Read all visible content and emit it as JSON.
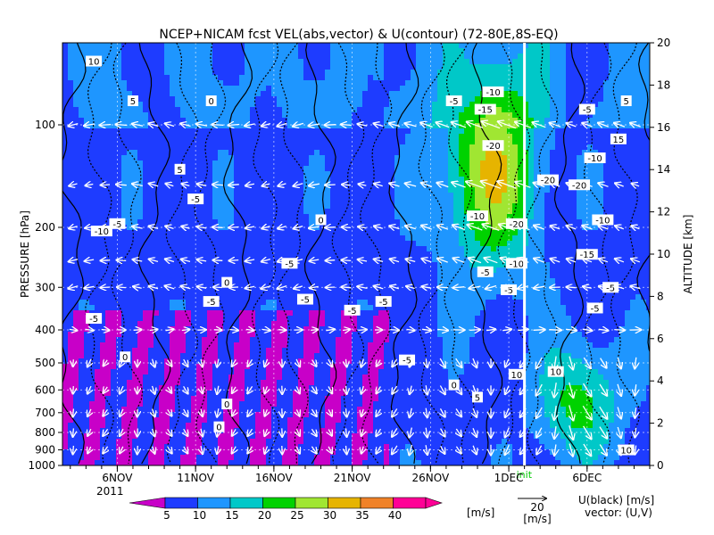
{
  "colors": {
    "bands": [
      "#7d00c8",
      "#c800c8",
      "#1e3cff",
      "#1e96ff",
      "#00c8c8",
      "#00d200",
      "#a0e632",
      "#e6b400",
      "#f08228",
      "#ff0096"
    ]
  },
  "chart_data": {
    "type": "heatmap",
    "title": "NCEP+NICAM  fcst  VEL(abs,vector) & U(contour)   (72-80E,8S-EQ)",
    "ylabel_left": "PRESSURE [hPa]",
    "ylabel_right": "ALTITUDE [km]",
    "x_ticks": [
      "6NOV",
      "11NOV",
      "16NOV",
      "21NOV",
      "26NOV",
      "1DEC",
      "6DEC"
    ],
    "x_ticks_day": [
      6,
      11,
      16,
      21,
      26,
      31,
      36
    ],
    "x_range_day": [
      2.5,
      40
    ],
    "year_label": "2011",
    "init_label": "init",
    "init_day": 32.0,
    "pressure_ticks": [
      "100",
      "200",
      "300",
      "400",
      "500",
      "600",
      "700",
      "800",
      "900",
      "1000"
    ],
    "pressure_tick_values": [
      100,
      200,
      300,
      400,
      500,
      600,
      700,
      800,
      900,
      1000
    ],
    "altitude_ticks": [
      "0",
      "2",
      "4",
      "6",
      "8",
      "10",
      "12",
      "14",
      "16",
      "18",
      "20"
    ],
    "altitude_tick_values": [
      0,
      2,
      4,
      6,
      8,
      10,
      12,
      14,
      16,
      18,
      20
    ],
    "altitude_range_km": [
      0,
      20
    ],
    "colorbar_labels": [
      "5",
      "10",
      "15",
      "20",
      "25",
      "30",
      "35",
      "40"
    ],
    "colorbar_values": [
      5,
      10,
      15,
      20,
      25,
      30,
      35,
      40
    ],
    "colorbar_unit": "[m/s]",
    "vector_ref_value": "20",
    "vector_ref_unit": "[m/s]",
    "contour_legend_line1": "U(black) [m/s]",
    "contour_legend_line2": "vector: (U,V)",
    "contour_labels": [
      {
        "t": "10",
        "day": 4.5,
        "p": 65
      },
      {
        "t": "5",
        "day": 7.0,
        "p": 85
      },
      {
        "t": "0",
        "day": 12.0,
        "p": 85
      },
      {
        "t": "5",
        "day": 10.0,
        "p": 135
      },
      {
        "t": "0",
        "day": 19.0,
        "p": 190
      },
      {
        "t": "-5",
        "day": 11.0,
        "p": 165
      },
      {
        "t": "-10",
        "day": 5.0,
        "p": 205
      },
      {
        "t": "-5",
        "day": 6.0,
        "p": 195
      },
      {
        "t": "-5",
        "day": 17.0,
        "p": 255
      },
      {
        "t": "-5",
        "day": 12.0,
        "p": 330
      },
      {
        "t": "-5",
        "day": 18.0,
        "p": 325
      },
      {
        "t": "-5",
        "day": 23.0,
        "p": 330
      },
      {
        "t": "-5",
        "day": 4.5,
        "p": 370
      },
      {
        "t": "-5",
        "day": 21.0,
        "p": 350
      },
      {
        "t": "0",
        "day": 6.5,
        "p": 480
      },
      {
        "t": "0",
        "day": 13.0,
        "p": 290
      },
      {
        "t": "-5",
        "day": 24.5,
        "p": 490
      },
      {
        "t": "0",
        "day": 27.5,
        "p": 580
      },
      {
        "t": "5",
        "day": 29.0,
        "p": 630
      },
      {
        "t": "0",
        "day": 13.0,
        "p": 660
      },
      {
        "t": "0",
        "day": 12.5,
        "p": 770
      },
      {
        "t": "-5",
        "day": 27.5,
        "p": 85
      },
      {
        "t": "-15",
        "day": 29.5,
        "p": 90
      },
      {
        "t": "-10",
        "day": 30.0,
        "p": 80
      },
      {
        "t": "-20",
        "day": 30.0,
        "p": 115
      },
      {
        "t": "-20",
        "day": 33.5,
        "p": 145
      },
      {
        "t": "-10",
        "day": 29.0,
        "p": 185
      },
      {
        "t": "-20",
        "day": 31.5,
        "p": 195
      },
      {
        "t": "-10",
        "day": 31.5,
        "p": 255
      },
      {
        "t": "-5",
        "day": 29.5,
        "p": 270
      },
      {
        "t": "-5",
        "day": 31.0,
        "p": 305
      },
      {
        "t": "10",
        "day": 31.5,
        "p": 540
      },
      {
        "t": "10",
        "day": 34.0,
        "p": 530
      },
      {
        "t": "-10",
        "day": 36.5,
        "p": 125
      },
      {
        "t": "-20",
        "day": 35.5,
        "p": 150
      },
      {
        "t": "-10",
        "day": 37.0,
        "p": 190
      },
      {
        "t": "-15",
        "day": 36.0,
        "p": 240
      },
      {
        "t": "-5",
        "day": 37.5,
        "p": 300
      },
      {
        "t": "-5",
        "day": 36.5,
        "p": 345
      },
      {
        "t": "-5",
        "day": 36.0,
        "p": 90
      },
      {
        "t": "5",
        "day": 38.5,
        "p": 85
      },
      {
        "t": "15",
        "day": 38.0,
        "p": 110
      },
      {
        "t": "10",
        "day": 38.5,
        "p": 900
      }
    ]
  }
}
